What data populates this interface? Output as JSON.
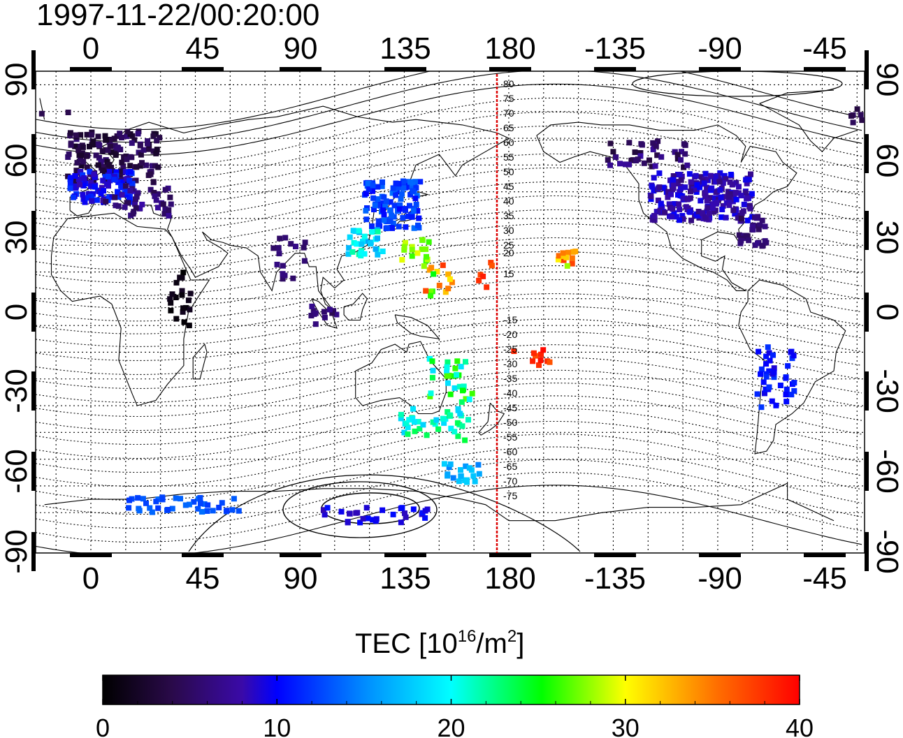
{
  "title": "1997-11-22/00:20:00",
  "top_axis_labels": [
    "0",
    "45",
    "90",
    "135",
    "180",
    "-135",
    "-90",
    "-45"
  ],
  "bottom_axis_labels": [
    "0",
    "45",
    "90",
    "135",
    "180",
    "-135",
    "-90",
    "-45"
  ],
  "left_axis_labels": [
    "90",
    "60",
    "30",
    "0",
    "-30",
    "-60",
    "-90"
  ],
  "right_axis_labels": [
    "90",
    "60",
    "30",
    "0",
    "-30",
    "-60",
    "-90"
  ],
  "magnetic_lat_labels": [
    "80",
    "75",
    "70",
    "65",
    "60",
    "55",
    "50",
    "45",
    "40",
    "35",
    "30",
    "25",
    "20",
    "15",
    "-15",
    "-20",
    "-25",
    "-30",
    "-35",
    "-40",
    "-45",
    "-50",
    "-55",
    "-60",
    "-65",
    "-70",
    "-75"
  ],
  "colorbar": {
    "title_main": "TEC  [10",
    "title_exp1": "16",
    "title_mid": "/m",
    "title_exp2": "2",
    "title_end": "]",
    "min": 0,
    "max": 40,
    "tick_labels": [
      "0",
      "10",
      "20",
      "30",
      "40"
    ],
    "colormap": "rainbow"
  },
  "colors": {
    "meridian_line": "#dd0000",
    "frame": "#000000"
  }
}
